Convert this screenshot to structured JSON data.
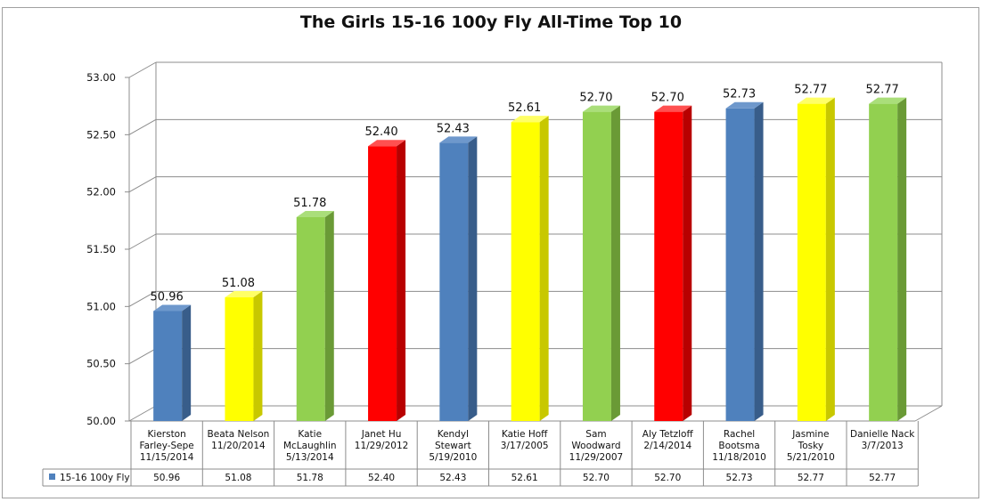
{
  "chart_data": {
    "type": "bar",
    "title": "The Girls 15-16 100y Fly All-Time Top 10",
    "ylim": [
      50.0,
      53.0
    ],
    "yticks": [
      "50.00",
      "50.50",
      "51.00",
      "51.50",
      "52.00",
      "52.50",
      "53.00"
    ],
    "categories": [
      [
        "Kierston",
        "Farley-Sepe",
        "11/15/2014"
      ],
      [
        "Beata Nelson",
        "11/20/2014"
      ],
      [
        "Katie",
        "McLaughlin",
        "5/13/2014"
      ],
      [
        "Janet Hu",
        "11/29/2012"
      ],
      [
        "Kendyl",
        "Stewart",
        "5/19/2010"
      ],
      [
        "Katie Hoff",
        "3/17/2005"
      ],
      [
        "Sam",
        "Woodward",
        "11/29/2007"
      ],
      [
        "Aly Tetzloff",
        "2/14/2014"
      ],
      [
        "Rachel",
        "Bootsma",
        "11/18/2010"
      ],
      [
        "Jasmine",
        "Tosky",
        "5/21/2010"
      ],
      [
        "Danielle Nack",
        "3/7/2013"
      ]
    ],
    "series": [
      {
        "name": "15-16 100y Fly",
        "values": [
          50.96,
          51.08,
          51.78,
          52.4,
          52.43,
          52.61,
          52.7,
          52.7,
          52.73,
          52.77,
          52.77
        ],
        "labels": [
          "50.96",
          "51.08",
          "51.78",
          "52.40",
          "52.43",
          "52.61",
          "52.70",
          "52.70",
          "52.73",
          "52.77",
          "52.77"
        ]
      }
    ],
    "bar_colors": [
      "blue",
      "yellow",
      "green",
      "red",
      "blue",
      "yellow",
      "green",
      "red",
      "blue",
      "yellow",
      "green"
    ],
    "palette": {
      "blue": {
        "front": "#4f81bd",
        "side": "#385d8a",
        "top": "#6e98cc"
      },
      "yellow": {
        "front": "#ffff00",
        "side": "#c8c800",
        "top": "#ffff66"
      },
      "green": {
        "front": "#92d050",
        "side": "#6a9a36",
        "top": "#aade7a"
      },
      "red": {
        "front": "#ff0000",
        "side": "#b80000",
        "top": "#ff5050"
      }
    },
    "legend_swatch_color": "#4f81bd",
    "grid": true,
    "legend": "data-table"
  }
}
